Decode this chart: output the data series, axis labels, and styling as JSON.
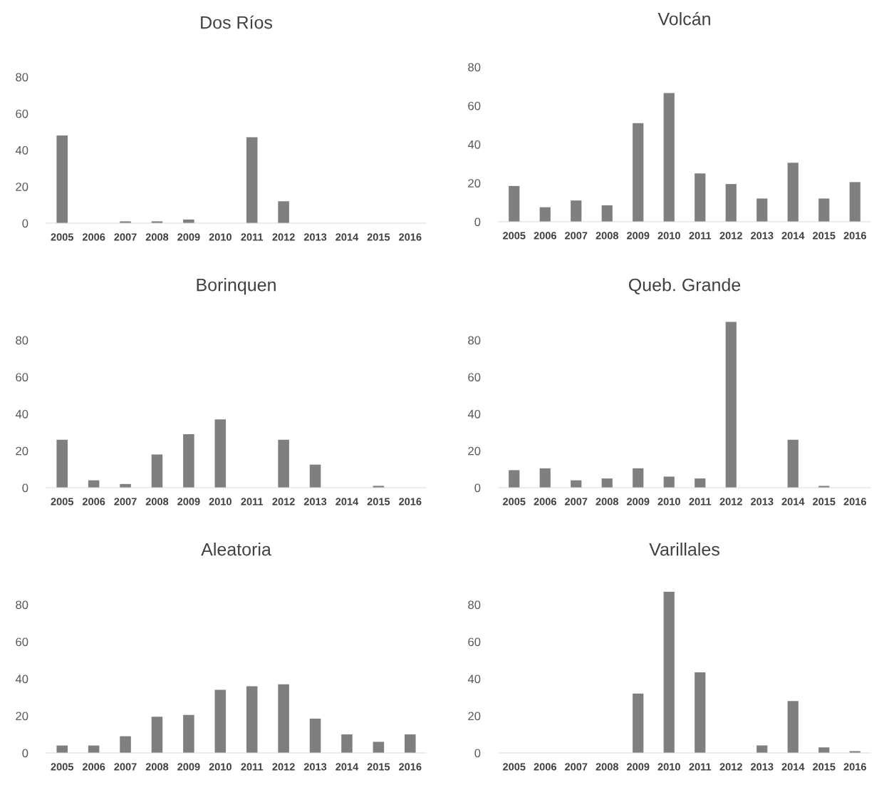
{
  "chart_data": [
    {
      "type": "bar",
      "title": "Dos Ríos",
      "categories": [
        "2005",
        "2006",
        "2007",
        "2008",
        "2009",
        "2010",
        "2011",
        "2012",
        "2013",
        "2014",
        "2015",
        "2016"
      ],
      "values": [
        48,
        0,
        1,
        1,
        2,
        0,
        47,
        12,
        0,
        0,
        0,
        0
      ],
      "color": "#7f7f7f",
      "ylim": [
        0,
        80
      ],
      "yticks": [
        0,
        20,
        40,
        60,
        80
      ],
      "grid": false
    },
    {
      "type": "bar",
      "title": "Volcán",
      "categories": [
        "2005",
        "2006",
        "2007",
        "2008",
        "2009",
        "2010",
        "2011",
        "2012",
        "2013",
        "2014",
        "2015",
        "2016"
      ],
      "values": [
        18.5,
        7.5,
        11,
        8.5,
        51,
        66.5,
        25,
        19.5,
        12,
        30.5,
        12,
        20.5
      ],
      "color": "#7f7f7f",
      "ylim": [
        0,
        80
      ],
      "yticks": [
        0,
        20,
        40,
        60,
        80
      ],
      "grid": false
    },
    {
      "type": "bar",
      "title": "Borinquen",
      "categories": [
        "2005",
        "2006",
        "2007",
        "2008",
        "2009",
        "2010",
        "2011",
        "2012",
        "2013",
        "2014",
        "2015",
        "2016"
      ],
      "values": [
        26,
        4,
        2,
        18,
        29,
        37,
        0,
        26,
        12.5,
        0,
        1,
        0
      ],
      "color": "#7f7f7f",
      "ylim": [
        0,
        80
      ],
      "yticks": [
        0,
        20,
        40,
        60,
        80
      ],
      "grid": false
    },
    {
      "type": "bar",
      "title": "Queb. Grande",
      "categories": [
        "2005",
        "2006",
        "2007",
        "2008",
        "2009",
        "2010",
        "2011",
        "2012",
        "2013",
        "2014",
        "2015",
        "2016"
      ],
      "values": [
        9.5,
        10.5,
        4,
        5,
        10.5,
        6,
        5,
        90,
        0,
        26,
        1,
        0
      ],
      "color": "#7f7f7f",
      "ylim": [
        0,
        90
      ],
      "yticks": [
        0,
        20,
        40,
        60,
        80
      ],
      "grid": false
    },
    {
      "type": "bar",
      "title": "Aleatoria",
      "categories": [
        "2005",
        "2006",
        "2007",
        "2008",
        "2009",
        "2010",
        "2011",
        "2012",
        "2013",
        "2014",
        "2015",
        "2016"
      ],
      "values": [
        4,
        4,
        9,
        19.5,
        20.5,
        34,
        36,
        37,
        18.5,
        10,
        6,
        10
      ],
      "color": "#7f7f7f",
      "ylim": [
        0,
        80
      ],
      "yticks": [
        0,
        20,
        40,
        60,
        80
      ],
      "grid": false
    },
    {
      "type": "bar",
      "title": "Varillales",
      "categories": [
        "2005",
        "2006",
        "2007",
        "2008",
        "2009",
        "2010",
        "2011",
        "2012",
        "2013",
        "2014",
        "2015",
        "2016"
      ],
      "values": [
        0,
        0,
        0,
        0,
        32,
        87,
        43.5,
        0,
        4,
        28,
        3,
        1
      ],
      "color": "#7f7f7f",
      "ylim": [
        0,
        87
      ],
      "yticks": [
        0,
        20,
        40,
        60,
        80
      ],
      "grid": false
    }
  ]
}
